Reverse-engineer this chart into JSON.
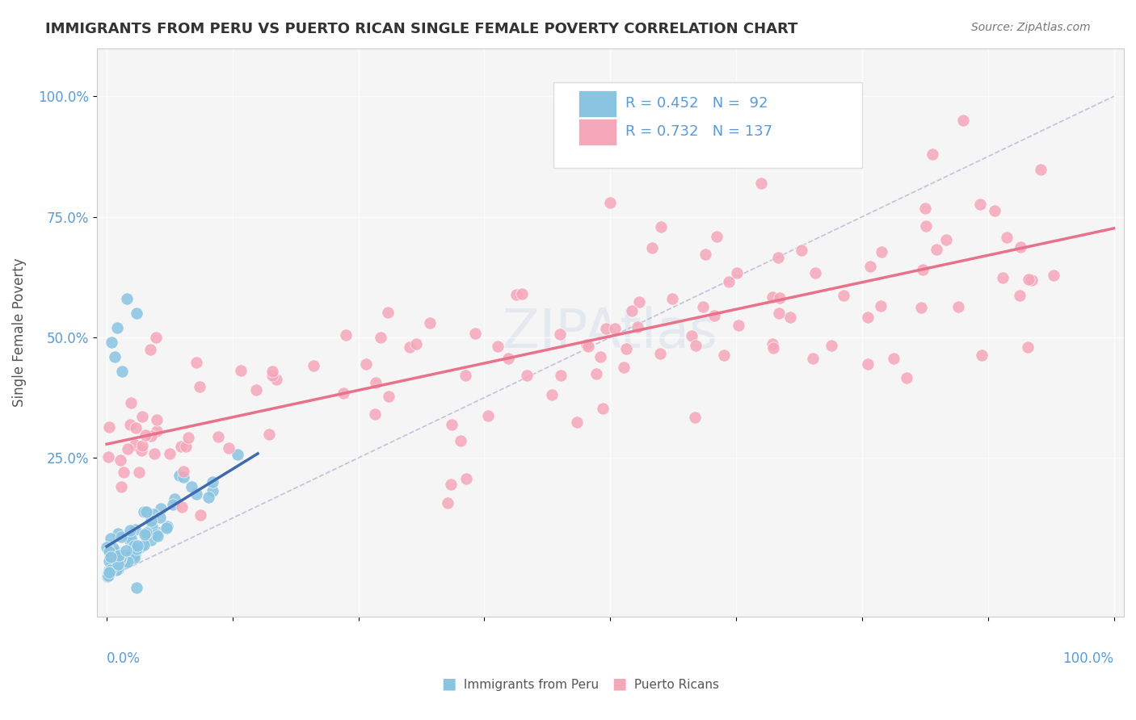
{
  "title": "IMMIGRANTS FROM PERU VS PUERTO RICAN SINGLE FEMALE POVERTY CORRELATION CHART",
  "source": "Source: ZipAtlas.com",
  "ylabel": "Single Female Poverty",
  "legend_blue_R": "0.452",
  "legend_blue_N": "92",
  "legend_pink_R": "0.732",
  "legend_pink_N": "137",
  "legend_label_blue": "Immigrants from Peru",
  "legend_label_pink": "Puerto Ricans",
  "blue_color": "#89c4e1",
  "pink_color": "#f4a7b9",
  "blue_line_color": "#4169b0",
  "pink_line_color": "#e8728a",
  "background_color": "#ffffff",
  "plot_bg_color": "#f5f5f5",
  "title_color": "#333333",
  "axis_label_color": "#5b9bd5",
  "legend_R_color": "#5b9bd5"
}
